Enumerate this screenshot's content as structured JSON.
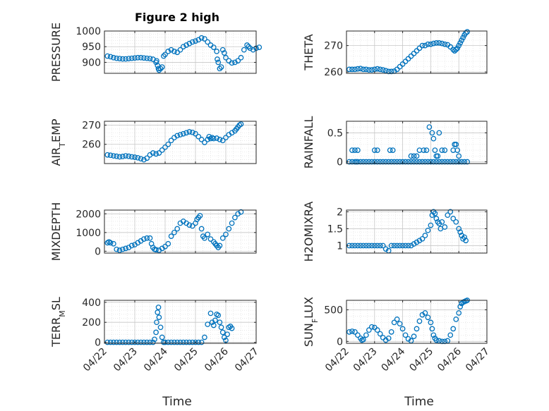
{
  "figure": {
    "title": "Figure 2 high",
    "xlabel": "Time",
    "marker_color": "#0072BD"
  },
  "chart_data": [
    {
      "type": "scatter",
      "name": "pressure",
      "ylabel": "PRESSURE",
      "xlim": [
        "04/22",
        "04/27"
      ],
      "ylim": [
        865,
        1000
      ],
      "yticks": [
        900,
        950,
        1000
      ],
      "x": [
        0.1,
        0.2,
        0.3,
        0.4,
        0.5,
        0.6,
        0.7,
        0.8,
        0.9,
        1.0,
        1.1,
        1.2,
        1.3,
        1.4,
        1.5,
        1.6,
        1.7,
        1.72,
        1.75,
        1.78,
        1.8,
        1.85,
        1.9,
        1.95,
        2.0,
        2.1,
        2.2,
        2.3,
        2.4,
        2.5,
        2.6,
        2.7,
        2.8,
        2.9,
        3.0,
        3.1,
        3.2,
        3.3,
        3.4,
        3.5,
        3.6,
        3.7,
        3.72,
        3.75,
        3.8,
        3.85,
        3.9,
        3.95,
        4.0,
        4.1,
        4.2,
        4.3,
        4.4,
        4.5,
        4.6,
        4.7,
        4.75,
        4.8,
        4.9,
        5.0,
        5.1
      ],
      "y": [
        920,
        918,
        915,
        913,
        912,
        911,
        911,
        912,
        913,
        914,
        915,
        915,
        914,
        913,
        912,
        910,
        900,
        905,
        890,
        880,
        875,
        880,
        885,
        920,
        925,
        935,
        940,
        935,
        932,
        940,
        950,
        955,
        960,
        965,
        968,
        972,
        978,
        975,
        965,
        955,
        948,
        935,
        910,
        900,
        880,
        885,
        940,
        930,
        915,
        905,
        898,
        900,
        905,
        915,
        940,
        955,
        950,
        945,
        940,
        945,
        948
      ]
    },
    {
      "type": "scatter",
      "name": "theta",
      "ylabel": "THETA",
      "xlim": [
        "04/22",
        "04/27"
      ],
      "ylim": [
        259.5,
        275.5
      ],
      "yticks": [
        260,
        270
      ],
      "x": [
        0.1,
        0.2,
        0.3,
        0.4,
        0.5,
        0.6,
        0.7,
        0.8,
        0.9,
        1.0,
        1.1,
        1.2,
        1.3,
        1.4,
        1.5,
        1.6,
        1.7,
        1.8,
        1.9,
        2.0,
        2.1,
        2.2,
        2.3,
        2.4,
        2.5,
        2.6,
        2.7,
        2.8,
        2.9,
        3.0,
        3.1,
        3.2,
        3.3,
        3.4,
        3.5,
        3.6,
        3.7,
        3.8,
        3.85,
        3.9,
        3.95,
        4.0,
        4.05,
        4.1,
        4.15,
        4.2,
        4.25,
        4.3
      ],
      "y": [
        261,
        261,
        261,
        261.2,
        261.3,
        261,
        261,
        260.8,
        260.8,
        261,
        261.2,
        261,
        260.8,
        260.5,
        260.2,
        260.2,
        260.3,
        261,
        262,
        263,
        264,
        265,
        266,
        267,
        268,
        269,
        270,
        270,
        270.5,
        270.5,
        270.8,
        271,
        271,
        270.8,
        270.5,
        270.3,
        269.5,
        268.5,
        268,
        268.5,
        269,
        270,
        271,
        272,
        273,
        274,
        274.8,
        275.2
      ]
    },
    {
      "type": "scatter",
      "name": "air_temp",
      "ylabel": "AIR_TEMP",
      "xlim": [
        "04/22",
        "04/27"
      ],
      "ylim": [
        250,
        272
      ],
      "yticks": [
        260,
        270
      ],
      "x": [
        0.1,
        0.2,
        0.3,
        0.4,
        0.5,
        0.6,
        0.7,
        0.8,
        0.9,
        1.0,
        1.1,
        1.2,
        1.3,
        1.4,
        1.5,
        1.6,
        1.7,
        1.8,
        1.9,
        2.0,
        2.1,
        2.2,
        2.3,
        2.4,
        2.5,
        2.6,
        2.7,
        2.8,
        2.9,
        3.0,
        3.1,
        3.2,
        3.3,
        3.4,
        3.45,
        3.5,
        3.55,
        3.6,
        3.7,
        3.8,
        3.9,
        4.0,
        4.1,
        4.2,
        4.3,
        4.35,
        4.4,
        4.45,
        4.5
      ],
      "y": [
        254.5,
        254.3,
        254,
        253.8,
        253.5,
        253.7,
        254,
        253.8,
        253.5,
        253.3,
        253,
        252.5,
        252,
        252.8,
        254.5,
        255.5,
        255,
        255.5,
        257,
        258.5,
        260,
        262,
        263.5,
        264.5,
        265,
        265.5,
        266,
        266.5,
        266.2,
        265.5,
        264,
        262.5,
        261,
        262.5,
        264,
        263,
        263.5,
        263,
        263.2,
        262.5,
        262,
        263.5,
        265,
        266,
        267,
        268,
        269,
        270,
        270.5
      ]
    },
    {
      "type": "scatter",
      "name": "rainfall",
      "ylabel": "RAINFALL",
      "xlim": [
        "04/22",
        "04/27"
      ],
      "ylim": [
        -0.03,
        0.7
      ],
      "yticks": [
        0,
        0.5
      ],
      "x": [
        0.1,
        0.2,
        0.3,
        0.35,
        0.4,
        0.5,
        0.6,
        0.7,
        0.8,
        0.9,
        1.0,
        1.1,
        1.2,
        1.3,
        1.4,
        1.5,
        1.6,
        1.7,
        1.8,
        1.9,
        2.0,
        2.1,
        2.2,
        2.3,
        2.4,
        2.5,
        2.6,
        2.7,
        2.8,
        2.9,
        3.0,
        3.1,
        3.2,
        3.3,
        3.4,
        3.5,
        3.6,
        3.7,
        3.8,
        3.9,
        4.0,
        4.1,
        4.2,
        4.3,
        0.2,
        0.3,
        0.4,
        1.0,
        1.1,
        1.55,
        1.65,
        2.3,
        2.4,
        2.5,
        2.6,
        2.75,
        2.85,
        2.95,
        3.05,
        3.1,
        3.15,
        3.2,
        3.25,
        3.3,
        3.4,
        3.5,
        3.8,
        3.85,
        3.9,
        3.95,
        4.0
      ],
      "y": [
        0,
        0,
        0,
        0,
        0,
        0,
        0,
        0,
        0,
        0,
        0,
        0,
        0,
        0,
        0,
        0,
        0,
        0,
        0,
        0,
        0,
        0,
        0,
        0,
        0,
        0,
        0,
        0,
        0,
        0,
        0,
        0,
        0,
        0,
        0,
        0,
        0,
        0,
        0,
        0,
        0,
        0,
        0,
        0,
        0.2,
        0.2,
        0.2,
        0.2,
        0.2,
        0.2,
        0.2,
        0.1,
        0.1,
        0.1,
        0.2,
        0.2,
        0.2,
        0.6,
        0.5,
        0.4,
        0.2,
        0.1,
        0.1,
        0.5,
        0.2,
        0.2,
        0.2,
        0.3,
        0.3,
        0.2,
        0.1
      ]
    },
    {
      "type": "scatter",
      "name": "mixdepth",
      "ylabel": "MIXDEPTH",
      "xlim": [
        "04/22",
        "04/27"
      ],
      "ylim": [
        -100,
        2200
      ],
      "yticks": [
        0,
        1000,
        2000
      ],
      "x": [
        0.1,
        0.15,
        0.2,
        0.3,
        0.4,
        0.5,
        0.6,
        0.7,
        0.8,
        0.9,
        1.0,
        1.1,
        1.2,
        1.3,
        1.4,
        1.5,
        1.55,
        1.6,
        1.65,
        1.7,
        1.8,
        1.9,
        2.0,
        2.1,
        2.2,
        2.3,
        2.4,
        2.5,
        2.6,
        2.7,
        2.8,
        2.9,
        3.0,
        3.05,
        3.1,
        3.15,
        3.2,
        3.25,
        3.3,
        3.4,
        3.5,
        3.6,
        3.65,
        3.7,
        3.75,
        3.8,
        3.9,
        4.0,
        4.1,
        4.2,
        4.3,
        4.4,
        4.5
      ],
      "y": [
        450,
        500,
        450,
        400,
        100,
        50,
        100,
        150,
        200,
        300,
        350,
        450,
        550,
        650,
        700,
        700,
        400,
        200,
        100,
        80,
        50,
        150,
        250,
        400,
        800,
        1000,
        1200,
        1500,
        1600,
        1500,
        1400,
        1350,
        1500,
        1700,
        1800,
        1900,
        1200,
        800,
        700,
        900,
        650,
        500,
        400,
        300,
        200,
        300,
        700,
        900,
        1200,
        1500,
        1800,
        2000,
        2100
      ]
    },
    {
      "type": "scatter",
      "name": "h2omixra",
      "ylabel": "H2OMIXRA",
      "xlim": [
        "04/22",
        "04/27"
      ],
      "ylim": [
        0.78,
        2.05
      ],
      "yticks": [
        1,
        1.5,
        2
      ],
      "x": [
        0.1,
        0.2,
        0.3,
        0.4,
        0.5,
        0.6,
        0.7,
        0.8,
        0.9,
        1.0,
        1.1,
        1.2,
        1.3,
        1.4,
        1.5,
        1.6,
        1.7,
        1.8,
        1.9,
        2.0,
        2.1,
        2.2,
        2.3,
        2.4,
        2.5,
        2.6,
        2.7,
        2.8,
        2.9,
        3.0,
        3.05,
        3.1,
        3.15,
        3.2,
        3.25,
        3.3,
        3.35,
        3.4,
        3.5,
        3.6,
        3.7,
        3.8,
        3.9,
        4.0,
        4.05,
        4.1,
        4.15,
        4.2,
        4.25
      ],
      "y": [
        1,
        1,
        1,
        1,
        1,
        1,
        1,
        1,
        1,
        1,
        1,
        1,
        1,
        0.9,
        0.85,
        1,
        1,
        1,
        1,
        1,
        1,
        1,
        1,
        1.05,
        1.1,
        1.15,
        1.2,
        1.3,
        1.45,
        1.6,
        1.9,
        2,
        1.95,
        1.8,
        1.7,
        1.65,
        1.5,
        1.7,
        1.55,
        1.9,
        2,
        1.8,
        1.7,
        1.5,
        1.4,
        1.3,
        1.2,
        1.25,
        1.15
      ]
    },
    {
      "type": "scatter",
      "name": "terr_msl",
      "ylabel": "TERR_MSL",
      "xlim": [
        "04/22",
        "04/27"
      ],
      "ylim": [
        -10,
        420
      ],
      "yticks": [
        0,
        200,
        400
      ],
      "x": [
        0.1,
        0.2,
        0.3,
        0.4,
        0.5,
        0.6,
        0.7,
        0.8,
        0.9,
        1.0,
        1.1,
        1.2,
        1.3,
        1.4,
        1.5,
        1.6,
        1.65,
        1.7,
        1.72,
        1.75,
        1.78,
        1.8,
        1.85,
        1.9,
        1.95,
        2.0,
        2.1,
        2.2,
        2.3,
        2.4,
        2.5,
        2.6,
        2.7,
        2.8,
        2.9,
        3.0,
        3.1,
        3.2,
        3.3,
        3.4,
        3.5,
        3.55,
        3.6,
        3.65,
        3.7,
        3.75,
        3.8,
        3.85,
        3.9,
        3.95,
        4.0,
        4.05,
        4.1,
        4.15,
        4.2
      ],
      "y": [
        0,
        0,
        0,
        0,
        0,
        0,
        0,
        0,
        0,
        0,
        0,
        0,
        0,
        0,
        0,
        0,
        30,
        100,
        200,
        300,
        350,
        250,
        150,
        50,
        0,
        0,
        0,
        0,
        0,
        0,
        0,
        0,
        0,
        0,
        0,
        0,
        0,
        0,
        50,
        180,
        290,
        200,
        170,
        220,
        280,
        270,
        200,
        150,
        100,
        50,
        20,
        80,
        150,
        160,
        140
      ]
    },
    {
      "type": "scatter",
      "name": "sun_flux",
      "ylabel": "SUN_FLUX",
      "xlim": [
        "04/22",
        "04/27"
      ],
      "ylim": [
        -30,
        650
      ],
      "yticks": [
        0,
        500
      ],
      "x": [
        0.1,
        0.2,
        0.3,
        0.4,
        0.5,
        0.55,
        0.6,
        0.7,
        0.8,
        0.9,
        1.0,
        1.1,
        1.2,
        1.3,
        1.4,
        1.5,
        1.6,
        1.7,
        1.8,
        1.9,
        2.0,
        2.1,
        2.2,
        2.3,
        2.4,
        2.5,
        2.6,
        2.7,
        2.8,
        2.9,
        3.0,
        3.05,
        3.1,
        3.15,
        3.2,
        3.3,
        3.4,
        3.5,
        3.6,
        3.7,
        3.8,
        3.9,
        4.0,
        4.05,
        4.1,
        4.15,
        4.2,
        4.25,
        4.3
      ],
      "y": [
        150,
        160,
        150,
        100,
        50,
        20,
        30,
        100,
        180,
        230,
        220,
        180,
        120,
        60,
        20,
        50,
        150,
        300,
        350,
        280,
        200,
        100,
        40,
        10,
        80,
        200,
        320,
        420,
        450,
        380,
        300,
        200,
        100,
        50,
        20,
        10,
        0,
        0,
        10,
        100,
        200,
        350,
        450,
        550,
        600,
        620,
        630,
        640,
        650
      ]
    }
  ],
  "shared_xticks": [
    "04/22",
    "04/23",
    "04/24",
    "04/25",
    "04/26",
    "04/27"
  ]
}
